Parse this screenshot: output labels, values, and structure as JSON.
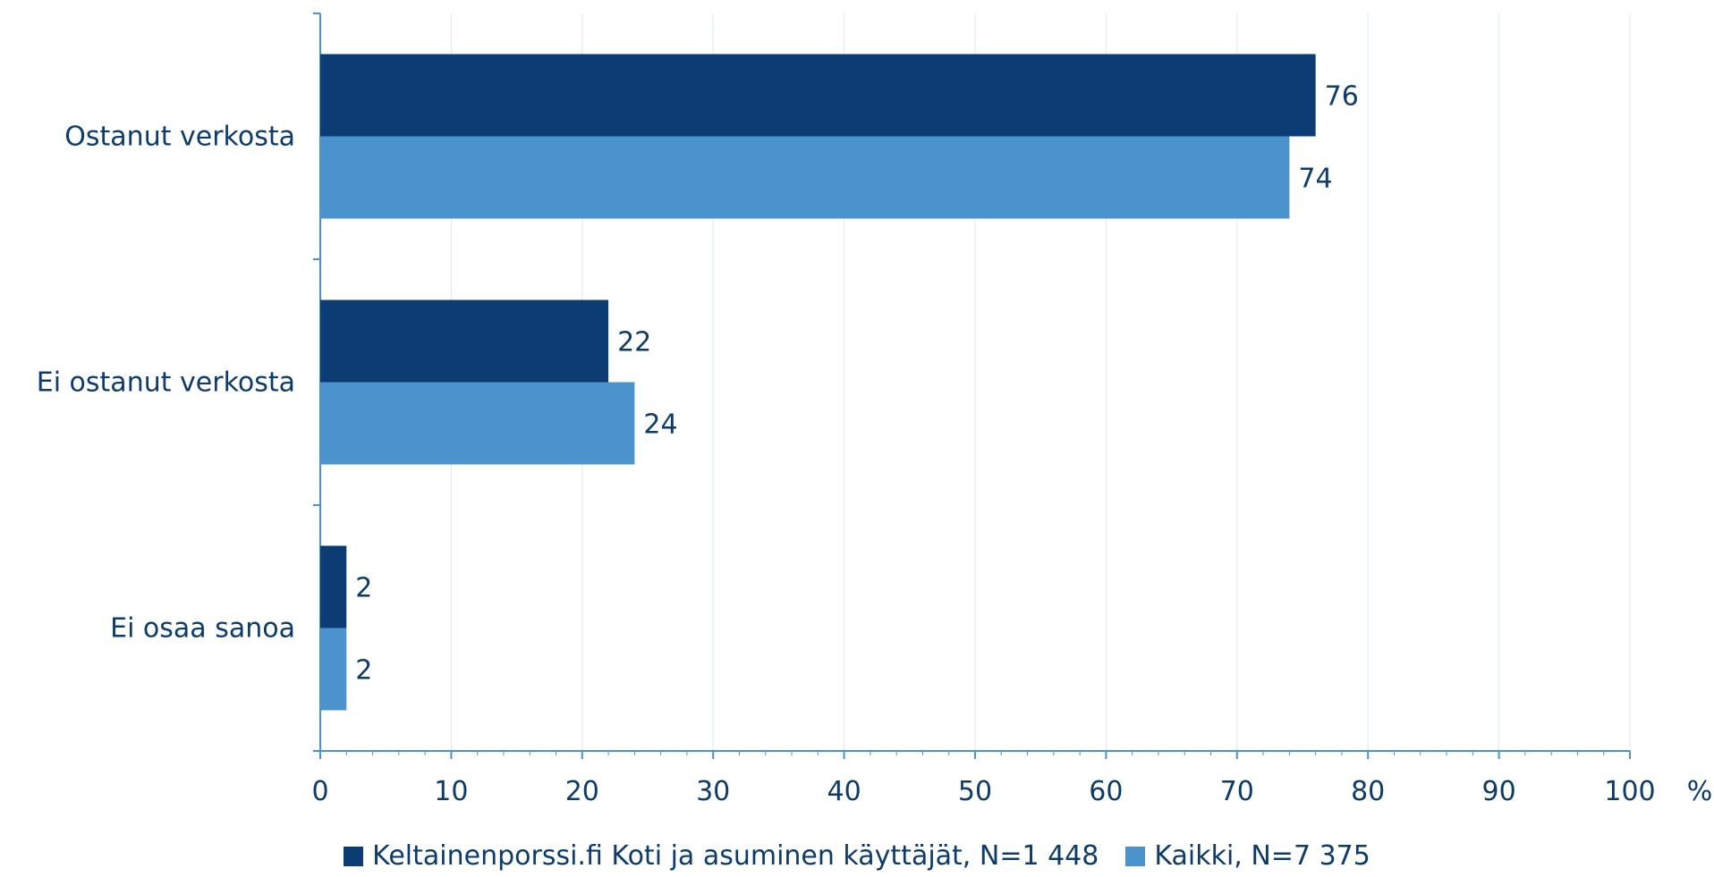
{
  "chart_data": {
    "type": "bar",
    "orientation": "horizontal",
    "categories": [
      "Ostanut verkosta",
      "Ei ostanut verkosta",
      "Ei osaa sanoa"
    ],
    "series": [
      {
        "name": "Keltainenporssi.fi Koti ja asuminen käyttäjät, N=1 448",
        "values": [
          76,
          22,
          2
        ],
        "color": "#0b3c73"
      },
      {
        "name": "Kaikki, N=7 375",
        "values": [
          74,
          24,
          2
        ],
        "color": "#4a93cc"
      }
    ],
    "xlim": [
      0,
      100
    ],
    "x_ticks": [
      0,
      10,
      20,
      30,
      40,
      50,
      60,
      70,
      80,
      90,
      100
    ],
    "x_unit": "%",
    "grid": true,
    "legend_placement": "bottom"
  }
}
